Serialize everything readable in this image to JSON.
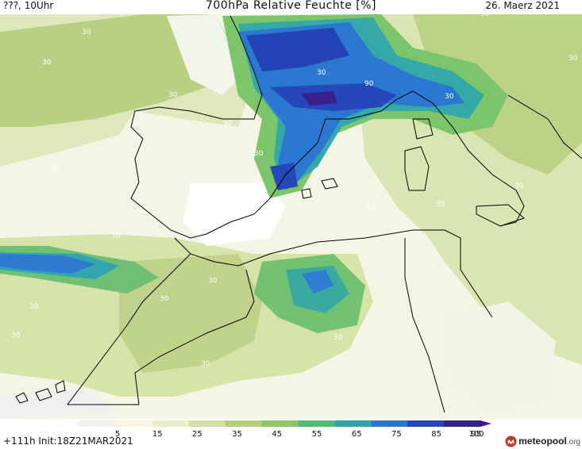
{
  "header": {
    "left_text": "???, 10Uhr",
    "title": "700hPa Relative Feuchte [%]",
    "date": "26. Maerz 2021"
  },
  "footer": {
    "run_info": "+111h  Init:18Z21MAR2021",
    "brand": "meteopool",
    "brand_suffix": ".org"
  },
  "legend": {
    "ticks": [
      "5",
      "15",
      "25",
      "35",
      "45",
      "55",
      "65",
      "75",
      "85",
      "95",
      "100"
    ],
    "colors": [
      "#f2f2f2",
      "#f7f7e4",
      "#e8eec8",
      "#d2e0a4",
      "#b6cf7e",
      "#8ec766",
      "#52bb7a",
      "#2fa6ad",
      "#2b76cf",
      "#2547b7",
      "#34218e",
      "#4a1480"
    ]
  },
  "contour_labels": [
    "30",
    "30",
    "30",
    "30",
    "30",
    "30",
    "30",
    "90",
    "30",
    "30",
    "30",
    "30",
    "30",
    "30",
    "30",
    "30",
    "30",
    "30",
    "30",
    "30",
    "30",
    "30"
  ],
  "colors": {
    "ocean": "#ffffff",
    "coastline": "#000000"
  }
}
